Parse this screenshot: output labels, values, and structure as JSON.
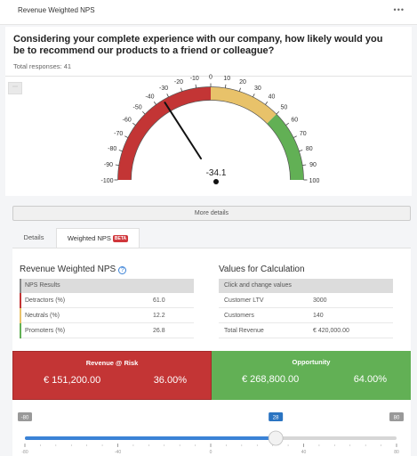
{
  "header": {
    "title": "Revenue Weighted NPS",
    "menu_icon": "more-dots-icon"
  },
  "question": "Considering your complete experience with our company, how likely would you be to recommend our products to a friend or colleague?",
  "total_responses": "Total responses: 41",
  "gauge": {
    "min": -100,
    "max": 100,
    "value": -34.1,
    "value_label": "-34.1",
    "ticks": [
      "-100",
      "-90",
      "-80",
      "-70",
      "-60",
      "-50",
      "-40",
      "-30",
      "-20",
      "-10",
      "0",
      "10",
      "20",
      "30",
      "40",
      "50",
      "60",
      "70",
      "80",
      "90",
      "100"
    ],
    "bands": [
      {
        "from": -100,
        "to": 0,
        "color": "#c33535"
      },
      {
        "from": 0,
        "to": 50,
        "color": "#e8c26a"
      },
      {
        "from": 50,
        "to": 100,
        "color": "#62b055"
      }
    ]
  },
  "more_details": "More details",
  "tabs": {
    "details": "Details",
    "weighted": "Weighted NPS",
    "beta": "BETA"
  },
  "nps": {
    "title": "Revenue Weighted NPS",
    "help_icon": "?",
    "header": "NPS Results",
    "rows": [
      {
        "label": "Detractors (%)",
        "value": "61.0",
        "color": "#c33535"
      },
      {
        "label": "Neutrals (%)",
        "value": "12.2",
        "color": "#e8c26a"
      },
      {
        "label": "Promoters (%)",
        "value": "26.8",
        "color": "#62b055"
      }
    ]
  },
  "calc": {
    "title": "Values for Calculation",
    "header": "Click and change values",
    "rows": [
      {
        "label": "Customer LTV",
        "value": "3000"
      },
      {
        "label": "Customers",
        "value": "140"
      },
      {
        "label": "Total Revenue",
        "value": "€ 420,000.00"
      }
    ]
  },
  "risk": {
    "title": "Revenue @ Risk",
    "amount": "€ 151,200.00",
    "pct": "36.00%"
  },
  "opportunity": {
    "title": "Opportunity",
    "amount": "€ 268,800.00",
    "pct": "64.00%"
  },
  "slider": {
    "min_label": "-80",
    "max_label": "80",
    "value_label": "28",
    "value": 28,
    "min": -80,
    "max": 80,
    "scale": [
      "-80",
      "-40",
      "0",
      "40",
      "80"
    ]
  }
}
